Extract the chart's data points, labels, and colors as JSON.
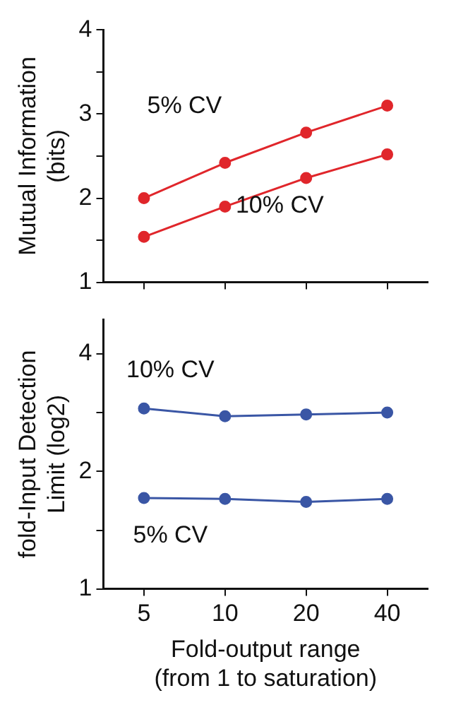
{
  "chart_data": [
    {
      "type": "line",
      "ylabel": "Mutual Information (bits)",
      "categories": [
        "5",
        "10",
        "20",
        "40"
      ],
      "ylim": [
        1,
        4
      ],
      "yticks": [
        1,
        {
          "value": 1.5,
          "label": null
        },
        2,
        {
          "value": 2.5,
          "label": null
        },
        3,
        {
          "value": 3.5,
          "label": null
        },
        4
      ],
      "tick_labels": "y",
      "grid": false,
      "legend": false,
      "marker": "circle",
      "line_style": "solid",
      "series": [
        {
          "name": "5% CV",
          "color": "#e0262b",
          "values": [
            2.0,
            2.42,
            2.78,
            3.1
          ]
        },
        {
          "name": "10% CV",
          "color": "#e0262b",
          "values": [
            1.54,
            1.9,
            2.24,
            2.52
          ]
        }
      ]
    },
    {
      "type": "line",
      "ylabel": "fold-Input Detection Limit (log2)",
      "xlabel": "Fold-output range (from 1 to saturation)",
      "categories": [
        "5",
        "10",
        "20",
        "40"
      ],
      "log": "y",
      "ylim": [
        1,
        4.9
      ],
      "yticks": [
        1,
        {
          "value": 1.41,
          "label": null
        },
        2,
        {
          "value": 2.83,
          "label": null
        },
        4
      ],
      "grid": false,
      "legend": false,
      "marker": "circle",
      "line_style": "solid",
      "series": [
        {
          "name": "10% CV",
          "color": "#3a56a5",
          "values": [
            2.9,
            2.77,
            2.8,
            2.83
          ]
        },
        {
          "name": "5% CV",
          "color": "#3a56a5",
          "values": [
            1.71,
            1.7,
            1.67,
            1.7
          ]
        }
      ]
    }
  ]
}
